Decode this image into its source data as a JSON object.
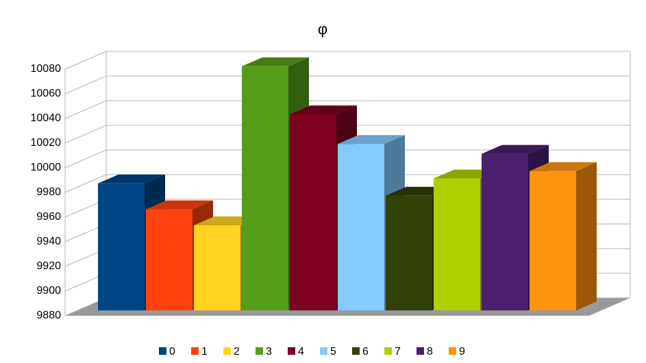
{
  "chart_data": {
    "type": "bar3d",
    "title": "φ",
    "categories": [
      "0",
      "1",
      "2",
      "3",
      "4",
      "5",
      "6",
      "7",
      "8",
      "9"
    ],
    "values": [
      9983,
      9962,
      9949,
      10078,
      10039,
      10015,
      9973,
      9987,
      10007,
      9993
    ],
    "colors": [
      "#004586",
      "#ff420e",
      "#ffd320",
      "#579d1c",
      "#7e0021",
      "#83caff",
      "#314004",
      "#aecf00",
      "#4b1f6f",
      "#ff950e"
    ],
    "ylim": [
      9880,
      10080
    ],
    "yticks": [
      9880,
      9900,
      9920,
      9940,
      9960,
      9980,
      10000,
      10020,
      10040,
      10060,
      10080
    ],
    "grid": true,
    "legend": "bottom"
  }
}
